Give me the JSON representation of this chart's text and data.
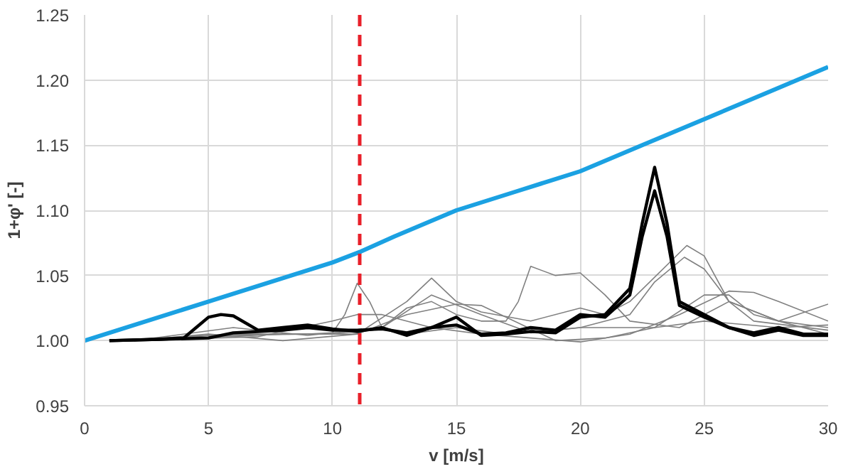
{
  "chart_data": {
    "type": "line",
    "xlabel": "v [m/s]",
    "ylabel": "1+φ' [-]",
    "xlim": [
      0,
      30
    ],
    "ylim": [
      0.95,
      1.25
    ],
    "xticks": [
      0,
      5,
      10,
      15,
      20,
      25,
      30
    ],
    "yticks": [
      {
        "value": 0.95,
        "label": "0.95"
      },
      {
        "value": 1.0,
        "label": "1.00"
      },
      {
        "value": 1.05,
        "label": "1.05"
      },
      {
        "value": 1.1,
        "label": "1.10"
      },
      {
        "value": 1.15,
        "label": "1.15"
      },
      {
        "value": 1.2,
        "label": "1.20"
      },
      {
        "value": 1.25,
        "label": "1.25"
      }
    ],
    "grid": true,
    "marker": "none",
    "line_style": "solid",
    "ref_lines": [
      {
        "axis": "x",
        "value": 11.1,
        "color": "#e8202a",
        "line_style": "dashed"
      }
    ],
    "series": [
      {
        "color": "#808080",
        "x": [
          1,
          5,
          9,
          10,
          10.5,
          11,
          11.5,
          12,
          13,
          15,
          17,
          20,
          23,
          25,
          28,
          30
        ],
        "values": [
          1.0,
          1.004,
          1.005,
          1.006,
          1.02,
          1.044,
          1.03,
          1.01,
          1.005,
          1.01,
          1.005,
          1.01,
          1.01,
          1.015,
          1.01,
          1.012
        ]
      },
      {
        "color": "#808080",
        "x": [
          2,
          6,
          10,
          12,
          13,
          14,
          15,
          16,
          17,
          17.5,
          18,
          19,
          20,
          21,
          22,
          24,
          26,
          28,
          30
        ],
        "values": [
          1.0,
          1.005,
          1.005,
          1.01,
          1.025,
          1.03,
          1.02,
          1.015,
          1.015,
          1.03,
          1.057,
          1.05,
          1.052,
          1.035,
          1.015,
          1.01,
          1.03,
          1.015,
          1.028
        ]
      },
      {
        "color": "#808080",
        "x": [
          2,
          8,
          11,
          13,
          14,
          15,
          16,
          18,
          20,
          21,
          22,
          24.3,
          25,
          26,
          28,
          30
        ],
        "values": [
          1.0,
          1.005,
          1.005,
          1.03,
          1.048,
          1.03,
          1.022,
          1.015,
          1.025,
          1.02,
          1.03,
          1.073,
          1.065,
          1.03,
          1.015,
          1.01
        ]
      },
      {
        "color": "#808080",
        "x": [
          2,
          6,
          9,
          12,
          14,
          16,
          18,
          20,
          22,
          23,
          24.2,
          25,
          26,
          27,
          30
        ],
        "values": [
          1.0,
          1.01,
          1.004,
          1.01,
          1.035,
          1.02,
          1.006,
          1.01,
          1.02,
          1.045,
          1.064,
          1.055,
          1.03,
          1.015,
          1.008
        ]
      },
      {
        "color": "#808080",
        "x": [
          2,
          7,
          10,
          11,
          12,
          14,
          16,
          18,
          20,
          22,
          24,
          26,
          27,
          28,
          30
        ],
        "values": [
          1.0,
          1.003,
          1.015,
          1.02,
          1.02,
          1.01,
          1.005,
          1.002,
          0.999,
          1.005,
          1.02,
          1.038,
          1.037,
          1.03,
          1.015
        ]
      },
      {
        "color": "#808080",
        "x": [
          2,
          5,
          8,
          11,
          13,
          15,
          16,
          17,
          19,
          21,
          23,
          25,
          26,
          27,
          30
        ],
        "values": [
          1.0,
          1.005,
          1.0,
          1.005,
          1.02,
          1.028,
          1.027,
          1.018,
          1.0,
          1.002,
          1.01,
          1.035,
          1.035,
          1.02,
          1.005
        ]
      },
      {
        "color": "#000000",
        "x": [
          1,
          3,
          4,
          4.5,
          5,
          5.5,
          6,
          7,
          8,
          9,
          10,
          11,
          12,
          13,
          14,
          15,
          16,
          17,
          18,
          19,
          20,
          21,
          22,
          22.5,
          23,
          23.5,
          24,
          25,
          26,
          27,
          28,
          29,
          30
        ],
        "values": [
          1.0,
          1.001,
          1.002,
          1.01,
          1.018,
          1.02,
          1.019,
          1.008,
          1.01,
          1.012,
          1.009,
          1.007,
          1.01,
          1.004,
          1.01,
          1.018,
          1.004,
          1.005,
          1.007,
          1.006,
          1.018,
          1.02,
          1.04,
          1.09,
          1.133,
          1.09,
          1.03,
          1.02,
          1.01,
          1.004,
          1.008,
          1.004,
          1.004
        ]
      },
      {
        "color": "#000000",
        "x": [
          1,
          3,
          5,
          6,
          7,
          8,
          9,
          10,
          11,
          12,
          13,
          14,
          15,
          16,
          17,
          18,
          19,
          20,
          21,
          22,
          22.5,
          23,
          23.5,
          24,
          25,
          26,
          27,
          28,
          29,
          30
        ],
        "values": [
          1.0,
          1.001,
          1.002,
          1.006,
          1.007,
          1.008,
          1.01,
          1.008,
          1.008,
          1.009,
          1.006,
          1.01,
          1.012,
          1.005,
          1.006,
          1.01,
          1.008,
          1.02,
          1.018,
          1.035,
          1.08,
          1.115,
          1.08,
          1.027,
          1.018,
          1.01,
          1.006,
          1.01,
          1.005,
          1.005
        ]
      },
      {
        "color": "#1ba1e2",
        "x": [
          0,
          5,
          10,
          11.1,
          12.5,
          15,
          17.5,
          20,
          22.5,
          25,
          27.5,
          30
        ],
        "values": [
          1.0,
          1.03,
          1.06,
          1.068,
          1.08,
          1.1,
          1.115,
          1.13,
          1.15,
          1.17,
          1.19,
          1.21
        ]
      }
    ]
  }
}
